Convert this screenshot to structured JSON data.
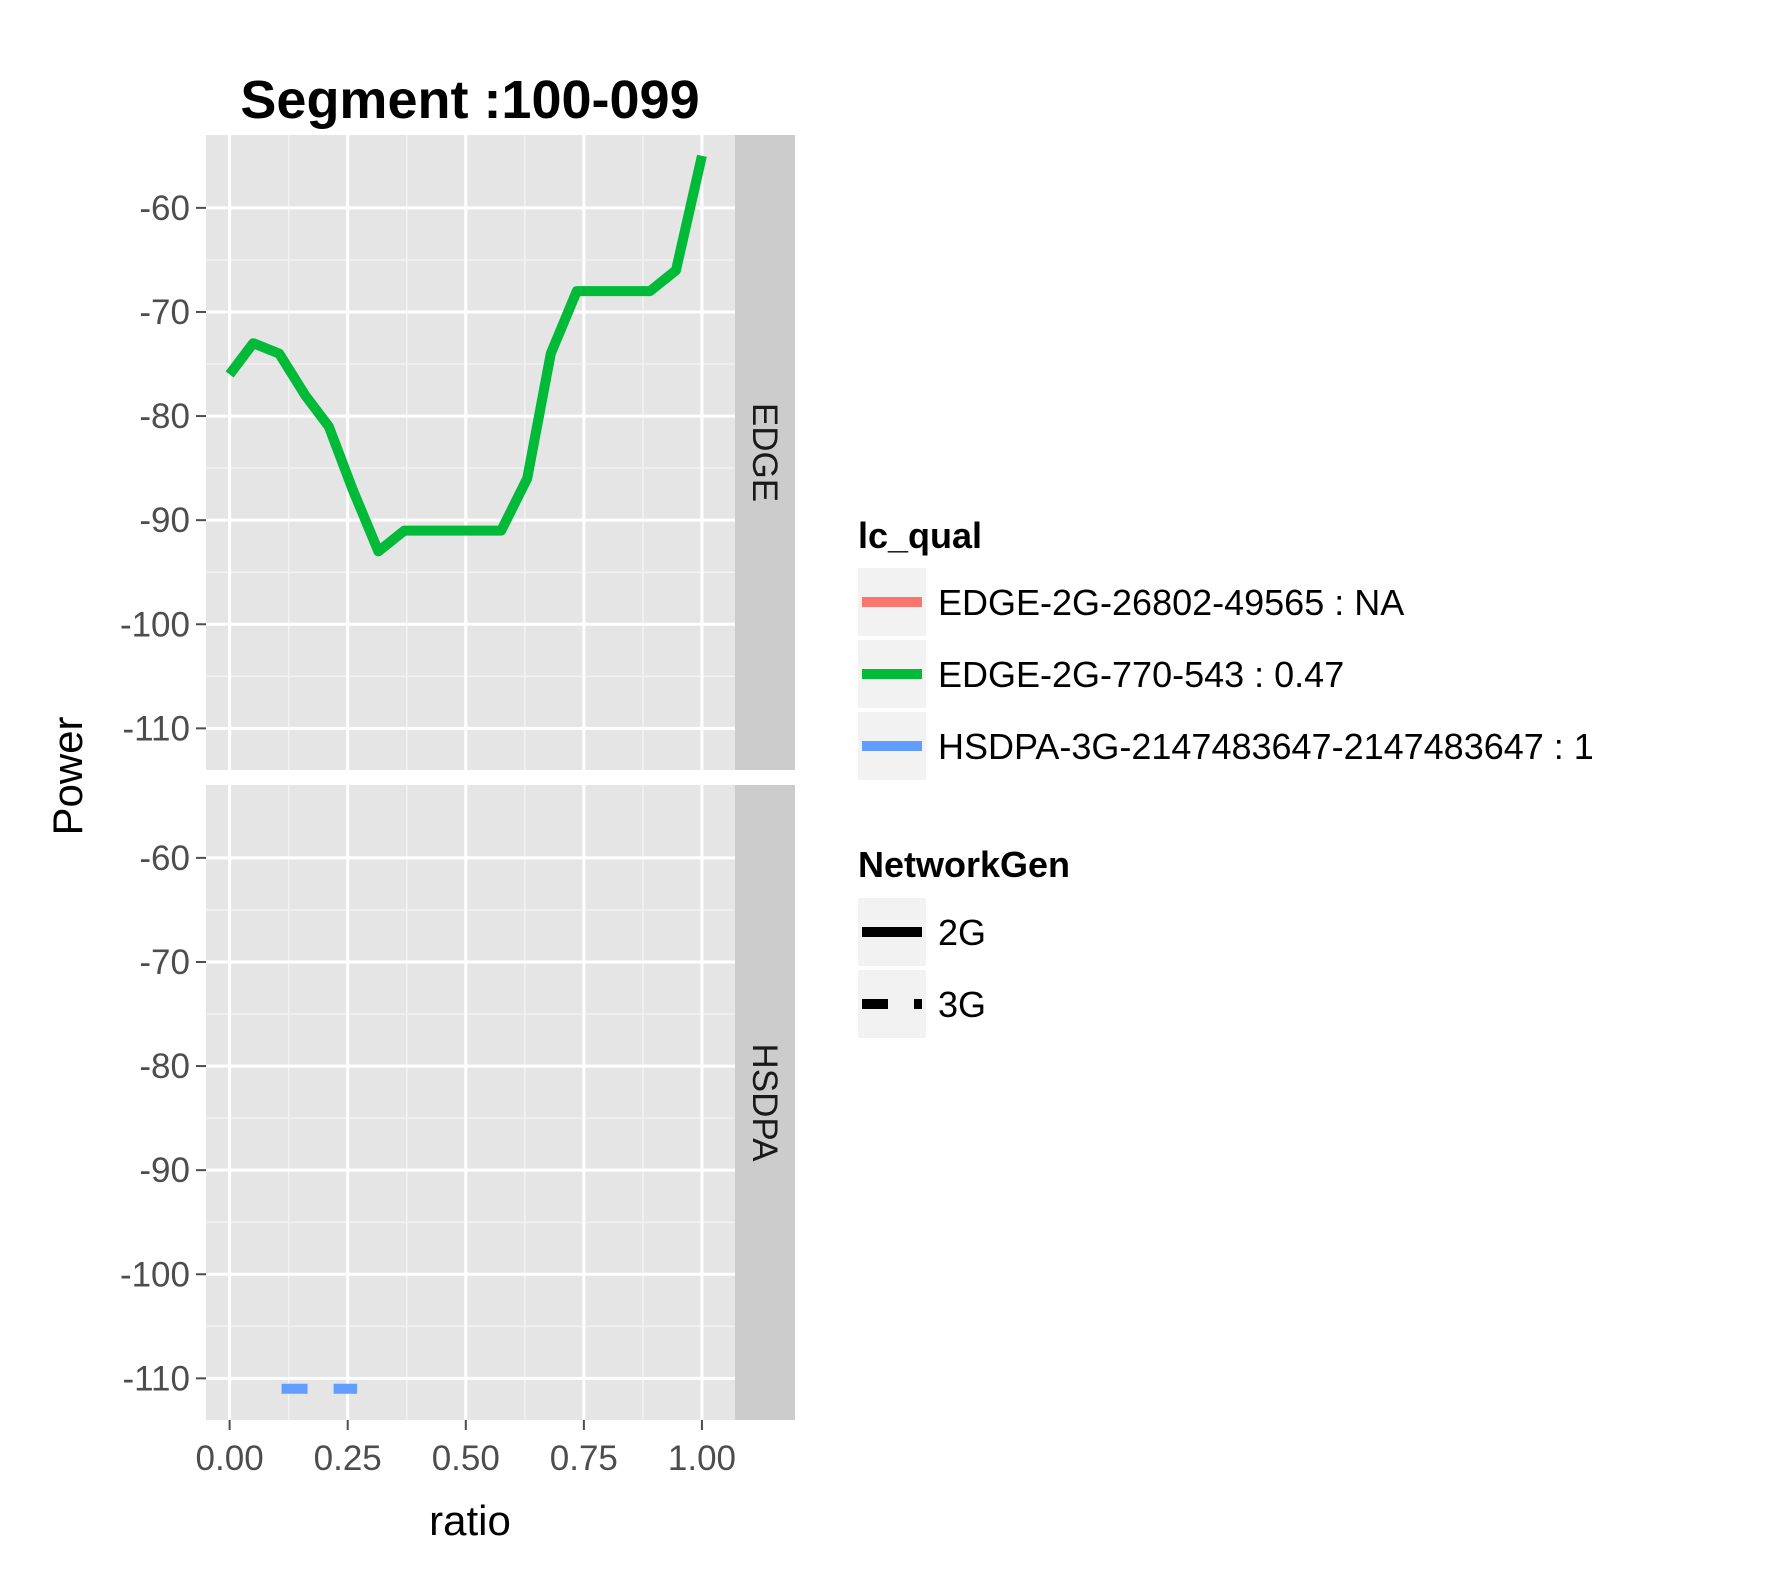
{
  "chart_data": {
    "type": "line",
    "title": "Segment :100-099",
    "xlabel": "ratio",
    "ylabel": "Power",
    "xlim": [
      -0.05,
      1.07
    ],
    "ylim": [
      -114,
      -53
    ],
    "x_ticks": [
      0.0,
      0.25,
      0.5,
      0.75,
      1.0
    ],
    "x_tick_labels": [
      "0.00",
      "0.25",
      "0.50",
      "0.75",
      "1.00"
    ],
    "y_ticks": [
      -60,
      -70,
      -80,
      -90,
      -100,
      -110
    ],
    "y_tick_labels": [
      "-60",
      "-70",
      "-80",
      "-90",
      "-100",
      "-110"
    ],
    "grid": true,
    "panels": [
      {
        "name": "EDGE",
        "series": [
          {
            "name": "EDGE-2G-770-543 : 0.47",
            "color": "#00ba38",
            "network": "2G",
            "x": [
              0.0,
              0.05,
              0.105,
              0.16,
              0.21,
              0.26,
              0.315,
              0.37,
              0.42,
              0.47,
              0.52,
              0.575,
              0.63,
              0.68,
              0.735,
              0.79,
              0.84,
              0.89,
              0.945,
              1.0
            ],
            "y": [
              -76,
              -73,
              -74,
              -78,
              -81,
              -87,
              -93,
              -91,
              -91,
              -91,
              -91,
              -91,
              -86,
              -74,
              -68,
              -68,
              -68,
              -68,
              -66,
              -55
            ]
          }
        ]
      },
      {
        "name": "HSDPA",
        "series": [
          {
            "name": "HSDPA-3G-2147483647-2147483647 : 1",
            "color": "#619cff",
            "network": "3G",
            "x": [
              0.11,
              0.27
            ],
            "y": [
              -111,
              -111
            ]
          }
        ]
      }
    ],
    "legends": [
      {
        "title": "lc_qual",
        "entries": [
          {
            "label": "EDGE-2G-26802-49565 : NA",
            "color": "#f8766d"
          },
          {
            "label": "EDGE-2G-770-543 : 0.47",
            "color": "#00ba38"
          },
          {
            "label": "HSDPA-3G-2147483647-2147483647 : 1",
            "color": "#619cff"
          }
        ]
      },
      {
        "title": "NetworkGen",
        "entries": [
          {
            "label": "2G",
            "linetype": "solid"
          },
          {
            "label": "3G",
            "linetype": "dashed"
          }
        ]
      }
    ]
  }
}
